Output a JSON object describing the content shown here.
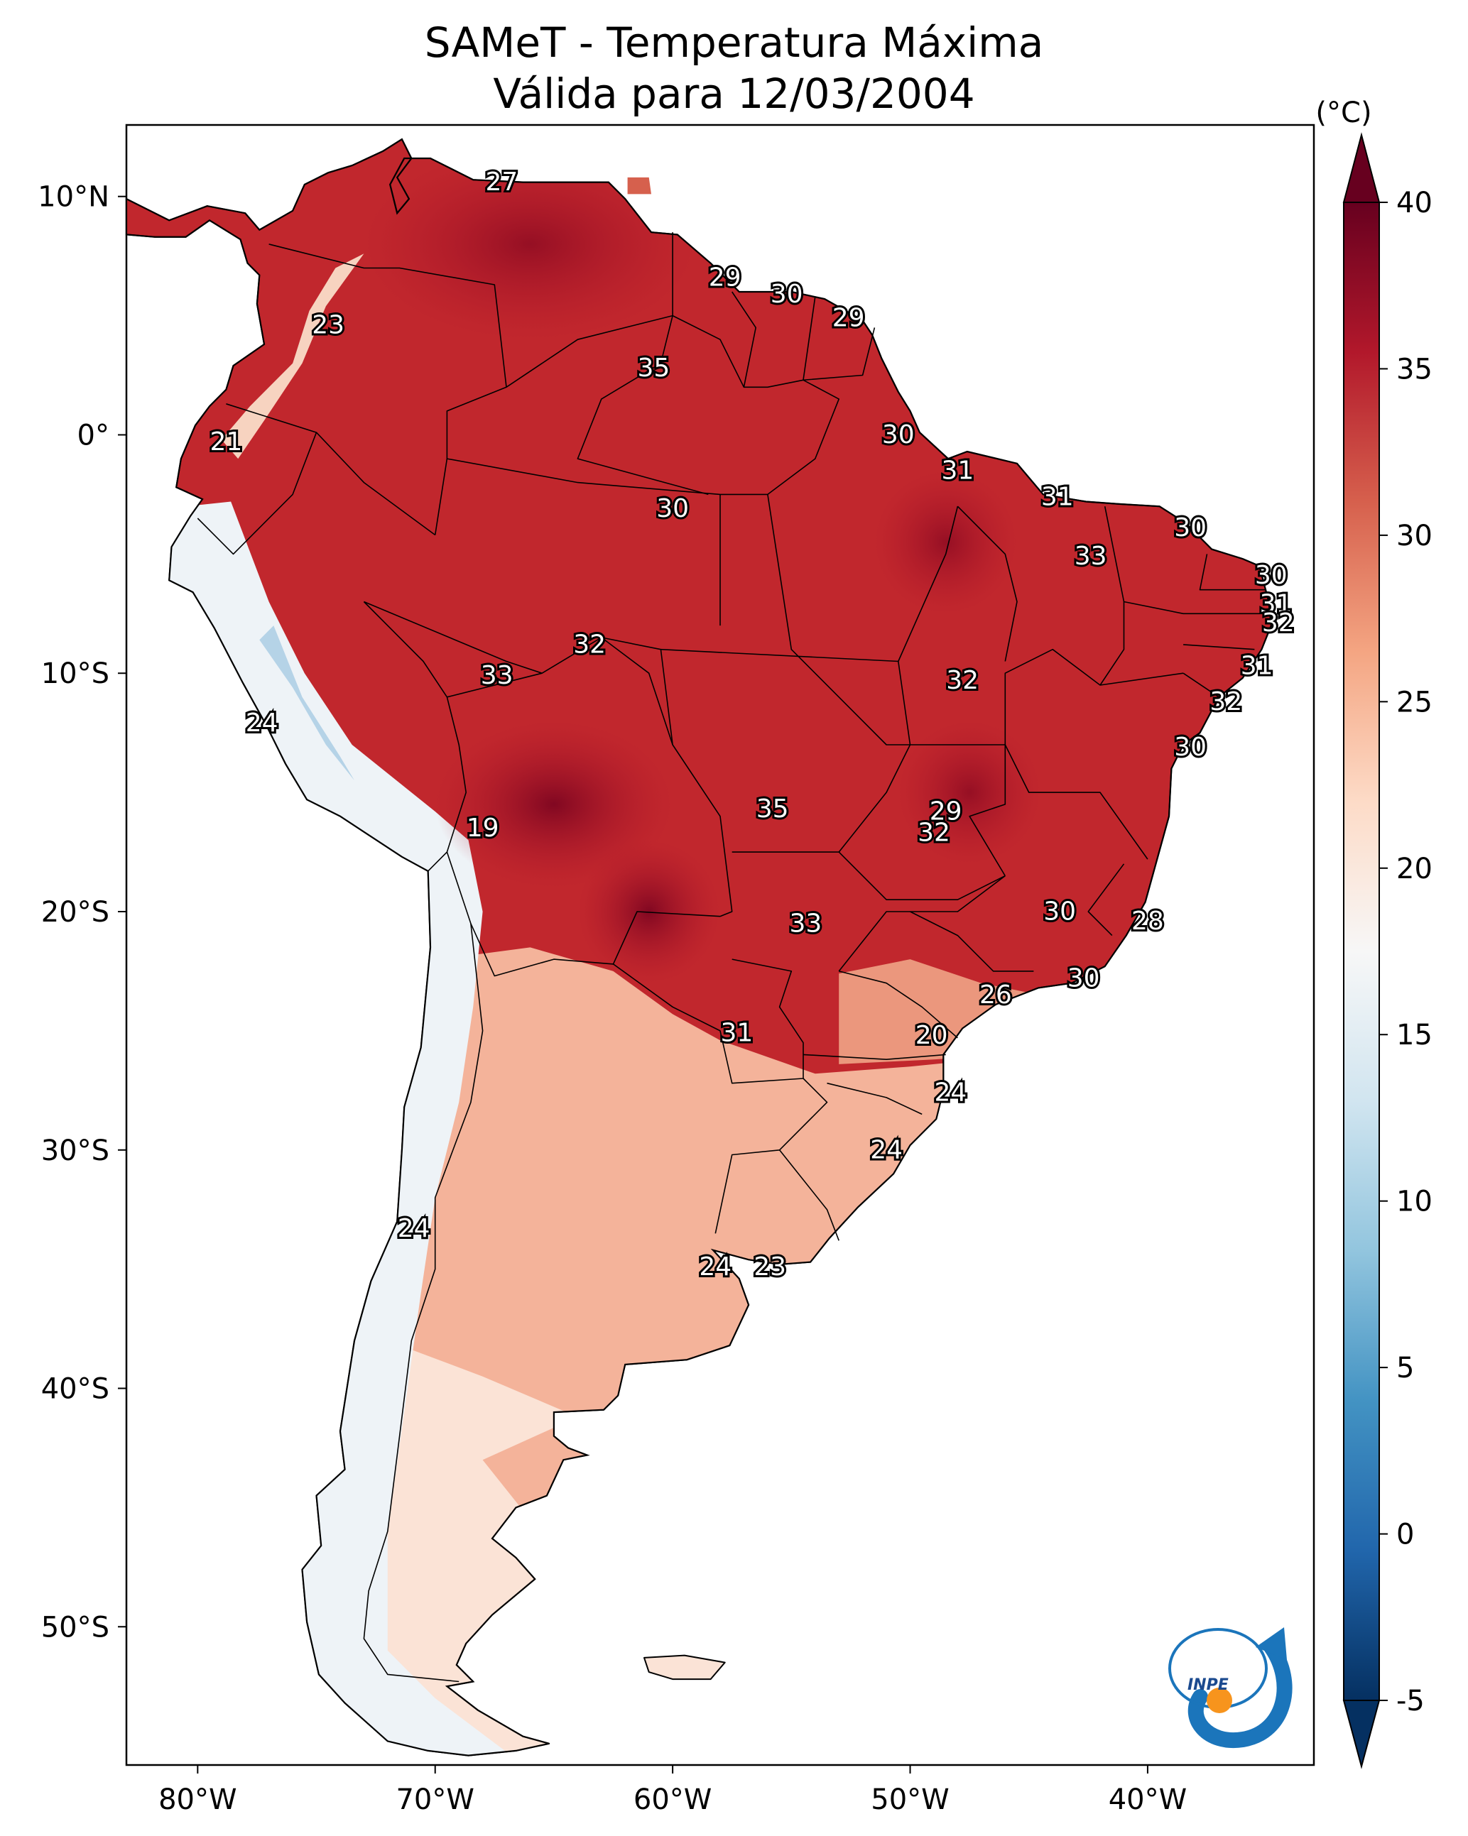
{
  "title": {
    "line1": "SAMeT - Temperatura Máxima",
    "line2": "Válida para 12/03/2004"
  },
  "colorbar": {
    "unit": "(°C)",
    "ticks": [
      "40",
      "35",
      "30",
      "25",
      "20",
      "15",
      "10",
      "5",
      "0",
      "-5"
    ],
    "range": [
      -5,
      40
    ],
    "colors": [
      "#053061",
      "#2166ac",
      "#4393c3",
      "#92c5de",
      "#d1e5f0",
      "#f7f7f7",
      "#fddbc7",
      "#f4a582",
      "#d6604d",
      "#b2182b",
      "#67001f"
    ]
  },
  "axes": {
    "lon_labels": [
      "80°W",
      "70°W",
      "60°W",
      "50°W",
      "40°W"
    ],
    "lat_labels": [
      "10°N",
      "0°",
      "10°S",
      "20°S",
      "30°S",
      "40°S",
      "50°S"
    ]
  },
  "contour_labels": [
    {
      "text": "27",
      "lon": -67.2,
      "lat": 10.6
    },
    {
      "text": "29",
      "lon": -57.8,
      "lat": 6.6
    },
    {
      "text": "30",
      "lon": -55.2,
      "lat": 5.9
    },
    {
      "text": "29",
      "lon": -52.6,
      "lat": 4.9
    },
    {
      "text": "23",
      "lon": -74.5,
      "lat": 4.6
    },
    {
      "text": "35",
      "lon": -60.8,
      "lat": 2.8
    },
    {
      "text": "30",
      "lon": -50.5,
      "lat": 0.0
    },
    {
      "text": "21",
      "lon": -78.8,
      "lat": -0.3
    },
    {
      "text": "31",
      "lon": -48.0,
      "lat": -1.5
    },
    {
      "text": "31",
      "lon": -43.8,
      "lat": -2.6
    },
    {
      "text": "30",
      "lon": -60.0,
      "lat": -3.1
    },
    {
      "text": "30",
      "lon": -38.2,
      "lat": -3.9
    },
    {
      "text": "33",
      "lon": -42.4,
      "lat": -5.1
    },
    {
      "text": "30",
      "lon": -34.8,
      "lat": -5.9
    },
    {
      "text": "31",
      "lon": -34.6,
      "lat": -7.1
    },
    {
      "text": "32",
      "lon": -34.5,
      "lat": -7.9
    },
    {
      "text": "32",
      "lon": -63.5,
      "lat": -8.8
    },
    {
      "text": "31",
      "lon": -35.4,
      "lat": -9.7
    },
    {
      "text": "33",
      "lon": -67.4,
      "lat": -10.1
    },
    {
      "text": "32",
      "lon": -47.8,
      "lat": -10.3
    },
    {
      "text": "32",
      "lon": -36.7,
      "lat": -11.2
    },
    {
      "text": "24",
      "lon": -77.3,
      "lat": -12.1
    },
    {
      "text": "30",
      "lon": -38.2,
      "lat": -13.1
    },
    {
      "text": "35",
      "lon": -55.8,
      "lat": -15.7
    },
    {
      "text": "29",
      "lon": -48.5,
      "lat": -15.8
    },
    {
      "text": "32",
      "lon": -49.0,
      "lat": -16.7
    },
    {
      "text": "19",
      "lon": -68.0,
      "lat": -16.5
    },
    {
      "text": "30",
      "lon": -43.7,
      "lat": -20.0
    },
    {
      "text": "28",
      "lon": -40.0,
      "lat": -20.4
    },
    {
      "text": "33",
      "lon": -54.4,
      "lat": -20.5
    },
    {
      "text": "30",
      "lon": -42.7,
      "lat": -22.8
    },
    {
      "text": "26",
      "lon": -46.4,
      "lat": -23.5
    },
    {
      "text": "31",
      "lon": -57.3,
      "lat": -25.1
    },
    {
      "text": "20",
      "lon": -49.1,
      "lat": -25.2
    },
    {
      "text": "24",
      "lon": -48.3,
      "lat": -27.6
    },
    {
      "text": "24",
      "lon": -51.0,
      "lat": -30.0
    },
    {
      "text": "24",
      "lon": -70.9,
      "lat": -33.3
    },
    {
      "text": "24",
      "lon": -58.2,
      "lat": -34.9
    },
    {
      "text": "23",
      "lon": -55.9,
      "lat": -34.9
    }
  ],
  "logo_text": "INPE"
}
